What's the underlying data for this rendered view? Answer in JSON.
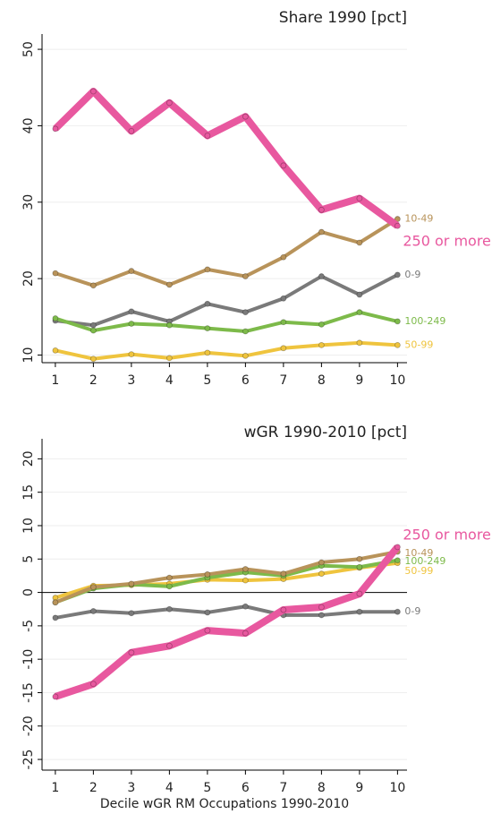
{
  "chart_data": [
    {
      "type": "line",
      "title": "Share 1990 [pct]",
      "x": [
        1,
        2,
        3,
        4,
        5,
        6,
        7,
        8,
        9,
        10
      ],
      "xlim": [
        0.65,
        10.25
      ],
      "xticks": [
        1,
        2,
        3,
        4,
        5,
        6,
        7,
        8,
        9,
        10
      ],
      "ylim": [
        9,
        52
      ],
      "yticks": [
        10,
        20,
        30,
        40,
        50
      ],
      "grid": true,
      "series": [
        {
          "name": "10-49",
          "color": "#b8935a",
          "values": [
            20.7,
            19.1,
            21,
            19.2,
            21.2,
            20.3,
            22.8,
            26.1,
            24.7,
            27.8
          ]
        },
        {
          "name": "0-9",
          "color": "#7a7a7a",
          "values": [
            14.5,
            13.9,
            15.7,
            14.4,
            16.7,
            15.6,
            17.4,
            20.3,
            17.9,
            20.5
          ]
        },
        {
          "name": "100-249",
          "color": "#7dba4a",
          "values": [
            14.8,
            13.2,
            14.1,
            13.9,
            13.5,
            13.1,
            14.3,
            14.0,
            15.6,
            14.4
          ]
        },
        {
          "name": "50-99",
          "color": "#efc43e",
          "values": [
            10.6,
            9.5,
            10.1,
            9.6,
            10.3,
            9.9,
            10.9,
            11.3,
            11.6,
            11.3
          ]
        },
        {
          "name": "250 or more",
          "color": "#e8589f",
          "values": [
            39.6,
            44.5,
            39.3,
            43,
            38.7,
            41.2,
            34.8,
            29,
            30.5,
            26.9
          ]
        }
      ]
    },
    {
      "type": "line",
      "title": "wGR 1990-2010 [pct]",
      "x_label": "Decile wGR RM Occupations 1990-2010",
      "x": [
        1,
        2,
        3,
        4,
        5,
        6,
        7,
        8,
        9,
        10
      ],
      "xlim": [
        0.65,
        10.25
      ],
      "xticks": [
        1,
        2,
        3,
        4,
        5,
        6,
        7,
        8,
        9,
        10
      ],
      "ylim": [
        -26.6,
        23
      ],
      "yticks": [
        20,
        15,
        10,
        5,
        0,
        -5,
        -10,
        -15,
        -20,
        -25
      ],
      "grid": true,
      "series": [
        {
          "name": "0-9",
          "color": "#7a7a7a",
          "values": [
            -3.8,
            -2.8,
            -3.1,
            -2.5,
            -3.0,
            -2.1,
            -3.4,
            -3.4,
            -2.9,
            -2.9
          ]
        },
        {
          "name": "50-99",
          "color": "#efc43e",
          "values": [
            -0.8,
            1.0,
            1.1,
            1.3,
            1.9,
            1.8,
            2.0,
            2.8,
            3.7,
            4.4
          ]
        },
        {
          "name": "100-249",
          "color": "#7dba4a",
          "values": [
            -1.5,
            0.6,
            1.2,
            0.9,
            2.2,
            3.0,
            2.5,
            4.0,
            3.8,
            4.8
          ]
        },
        {
          "name": "10-49",
          "color": "#b8935a",
          "values": [
            -1.5,
            0.8,
            1.3,
            2.2,
            2.7,
            3.5,
            2.8,
            4.5,
            5.0,
            6.1
          ]
        },
        {
          "name": "250 or more",
          "color": "#e8589f",
          "values": [
            -15.6,
            -13.7,
            -9,
            -8,
            -5.7,
            -6.1,
            -2.6,
            -2.2,
            -0.2,
            6.8
          ]
        }
      ]
    }
  ]
}
